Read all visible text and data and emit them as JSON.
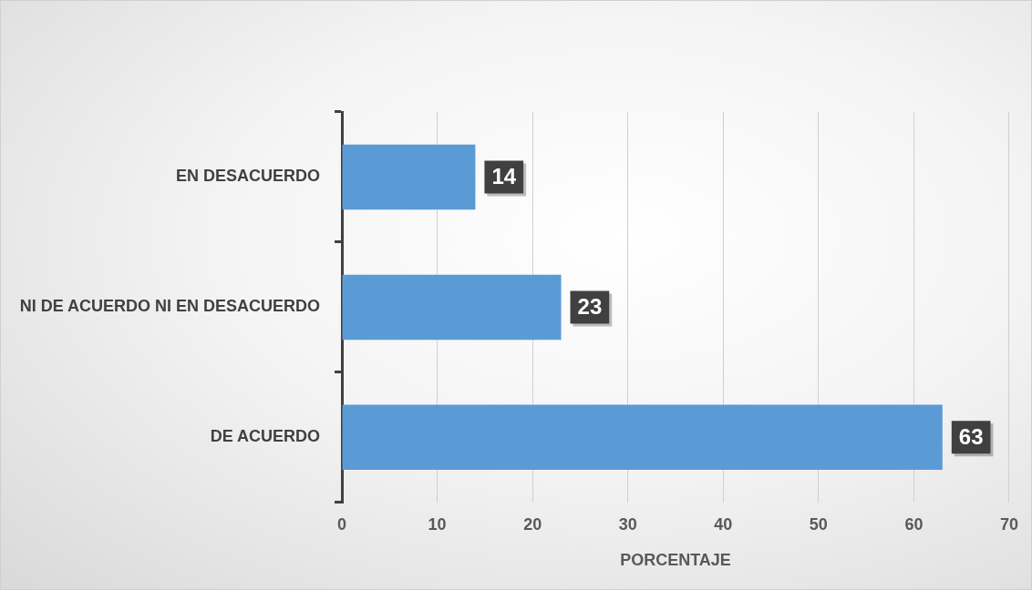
{
  "chart_data": {
    "type": "bar",
    "orientation": "horizontal",
    "xlabel": "PORCENTAJE",
    "categories": [
      "EN DESACUERDO",
      "NI DE ACUERDO NI EN DESACUERDO",
      "DE ACUERDO"
    ],
    "values": [
      14,
      23,
      63
    ],
    "color": "#5b9bd5",
    "xlim": [
      0,
      70
    ],
    "xticks": [
      0,
      10,
      20,
      30,
      40,
      50,
      60,
      70
    ],
    "grid": "x",
    "data_labels": true
  }
}
